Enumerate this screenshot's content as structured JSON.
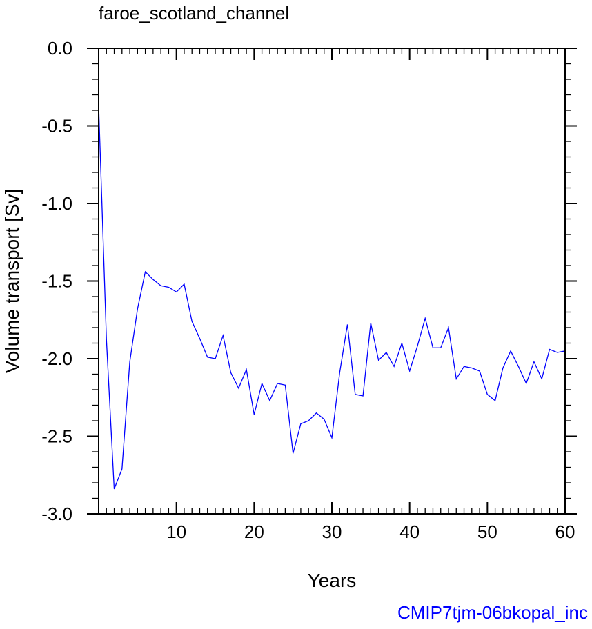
{
  "chart_data": {
    "type": "line",
    "title": "faroe_scotland_channel",
    "xlabel": "Years",
    "ylabel": "Volume transport [Sv]",
    "xlim": [
      0,
      60
    ],
    "ylim": [
      -3.0,
      0.0
    ],
    "x_ticks": [
      10,
      20,
      30,
      40,
      50,
      60
    ],
    "x_tick_labels": [
      "10",
      "20",
      "30",
      "40",
      "50",
      "60"
    ],
    "y_ticks": [
      0.0,
      -0.5,
      -1.0,
      -1.5,
      -2.0,
      -2.5,
      -3.0
    ],
    "y_tick_labels": [
      "0.0",
      "-0.5",
      "-1.0",
      "-1.5",
      "-2.0",
      "-2.5",
      "-3.0"
    ],
    "grid": false,
    "line_color": "#0000ff",
    "series": [
      {
        "x": [
          0,
          1,
          2,
          3,
          4,
          5,
          6,
          7,
          8,
          9,
          10,
          11,
          12,
          13,
          14,
          15,
          16,
          17,
          18,
          19,
          20,
          21,
          22,
          23,
          24,
          25,
          26,
          27,
          28,
          29,
          30,
          31,
          32,
          33,
          34,
          35,
          36,
          37,
          38,
          39,
          40,
          41,
          42,
          43,
          44,
          45,
          46,
          47,
          48,
          49,
          50,
          51,
          52,
          53,
          54,
          55,
          56,
          57,
          58,
          59,
          60
        ],
        "values": [
          -0.37,
          -1.88,
          -2.84,
          -2.71,
          -2.02,
          -1.68,
          -1.44,
          -1.49,
          -1.53,
          -1.54,
          -1.57,
          -1.52,
          -1.76,
          -1.87,
          -1.99,
          -2.0,
          -1.85,
          -2.09,
          -2.19,
          -2.07,
          -2.36,
          -2.16,
          -2.27,
          -2.16,
          -2.17,
          -2.61,
          -2.42,
          -2.4,
          -2.35,
          -2.39,
          -2.51,
          -2.09,
          -1.78,
          -2.23,
          -2.24,
          -1.77,
          -2.01,
          -1.96,
          -2.05,
          -1.9,
          -2.08,
          -1.92,
          -1.74,
          -1.93,
          -1.93,
          -1.8,
          -2.13,
          -2.05,
          -2.06,
          -2.08,
          -2.23,
          -2.27,
          -2.06,
          -1.95,
          -2.05,
          -2.16,
          -2.02,
          -2.13,
          -1.94,
          -1.96,
          -1.95
        ]
      }
    ]
  },
  "footer": {
    "run_id": "CMIP7tjm-06bkopal_inc",
    "run_id_color": "#0000ff"
  }
}
